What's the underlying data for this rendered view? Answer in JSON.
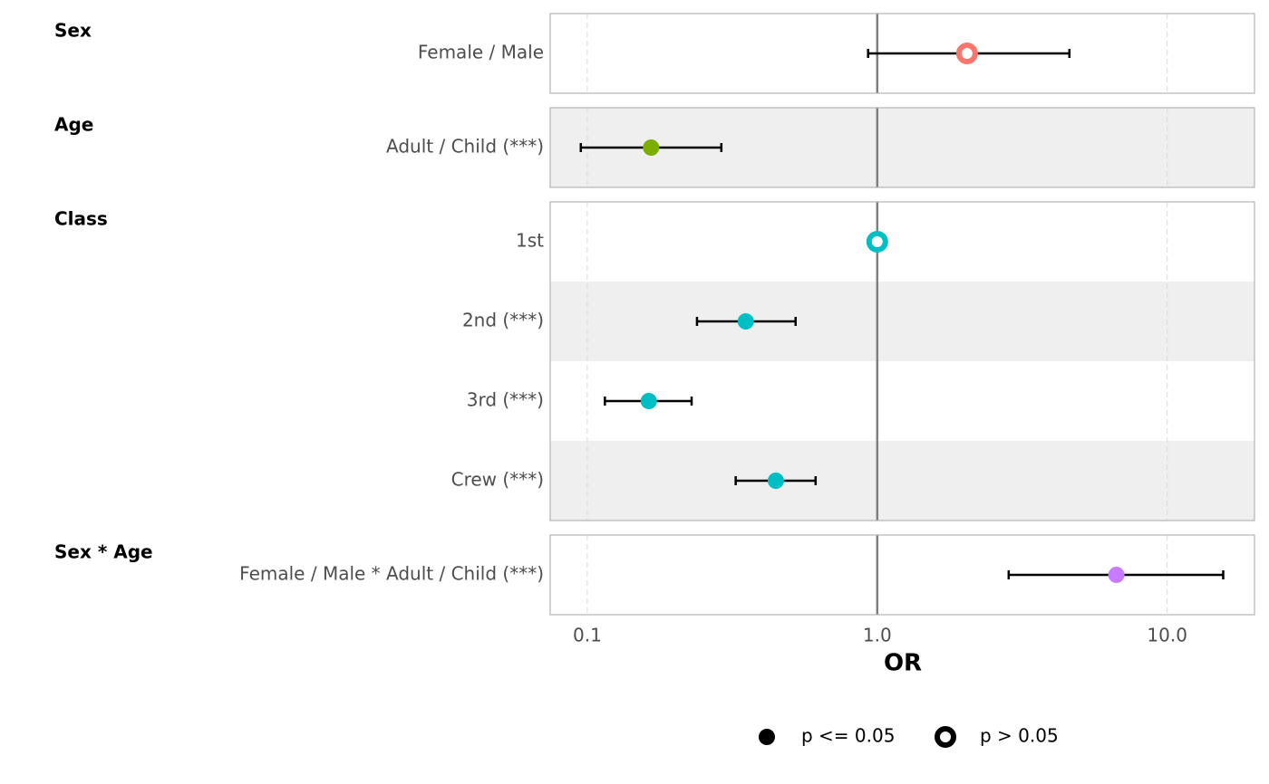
{
  "chart_data": {
    "type": "forest",
    "x_label": "OR",
    "log_x": true,
    "xlim": [
      0.0745,
      20
    ],
    "xticks": [
      0.1,
      {
        "value": 1,
        "label": "1.0"
      },
      {
        "value": 10,
        "label": "10.0"
      }
    ],
    "reference_line": 1,
    "legend": [
      "p <= 0.05",
      "p > 0.05"
    ],
    "groups": [
      {
        "name": "Sex",
        "color": "#f8766d",
        "rows": [
          {
            "label": "Female / Male",
            "estimate": 2.04,
            "lower": 0.93,
            "upper": 4.6,
            "significant": false
          }
        ]
      },
      {
        "name": "Age",
        "color": "#7cae00",
        "rows": [
          {
            "label": "Adult / Child (***)",
            "estimate": 0.166,
            "lower": 0.095,
            "upper": 0.29,
            "significant": true
          }
        ]
      },
      {
        "name": "Class",
        "color": "#00bfc4",
        "rows": [
          {
            "label": "1st",
            "estimate": 1,
            "lower": null,
            "upper": null,
            "significant": false
          },
          {
            "label": "2nd (***)",
            "estimate": 0.352,
            "lower": 0.239,
            "upper": 0.523,
            "significant": true
          },
          {
            "label": "3rd (***)",
            "estimate": 0.163,
            "lower": 0.115,
            "upper": 0.229,
            "significant": true
          },
          {
            "label": "Crew (***)",
            "estimate": 0.447,
            "lower": 0.325,
            "upper": 0.613,
            "significant": true
          }
        ]
      },
      {
        "name": "Sex * Age",
        "color": "#c77cff",
        "rows": [
          {
            "label": "Female / Male * Adult / Child (***)",
            "estimate": 6.68,
            "lower": 2.84,
            "upper": 15.6,
            "significant": true
          }
        ]
      }
    ]
  }
}
